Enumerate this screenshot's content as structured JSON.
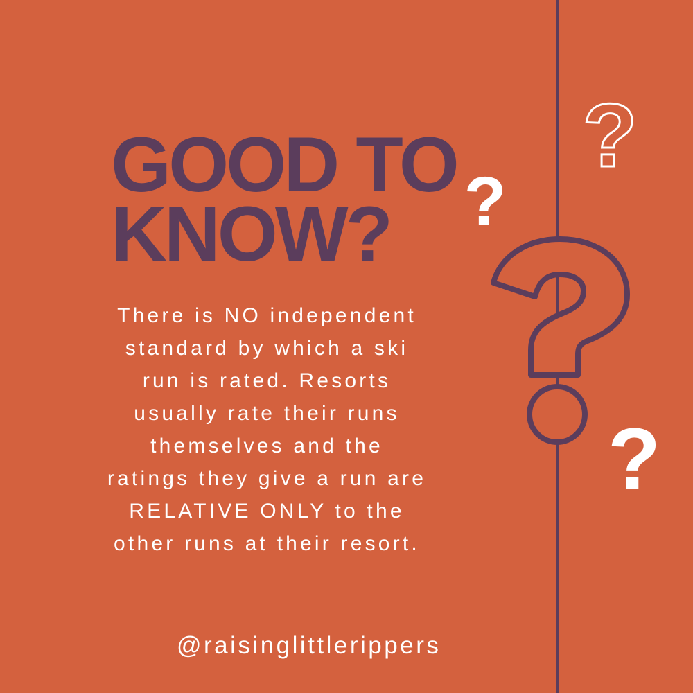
{
  "title_lines": [
    "GOOD TO",
    "KNOW?"
  ],
  "body_lines": [
    "There is NO independent",
    "standard by which a ski",
    "run is rated. Resorts",
    "usually rate their runs",
    "themselves and the",
    "ratings they give a run are",
    "RELATIVE ONLY to the",
    "other runs at their resort."
  ],
  "handle": "@raisinglittlerippers",
  "colors": {
    "background": "#d4613e",
    "accent": "#5b3d5c",
    "text": "#ffffff"
  },
  "icons": [
    "question-mark-outline-large",
    "question-mark-outline-small",
    "question-mark-filled"
  ]
}
